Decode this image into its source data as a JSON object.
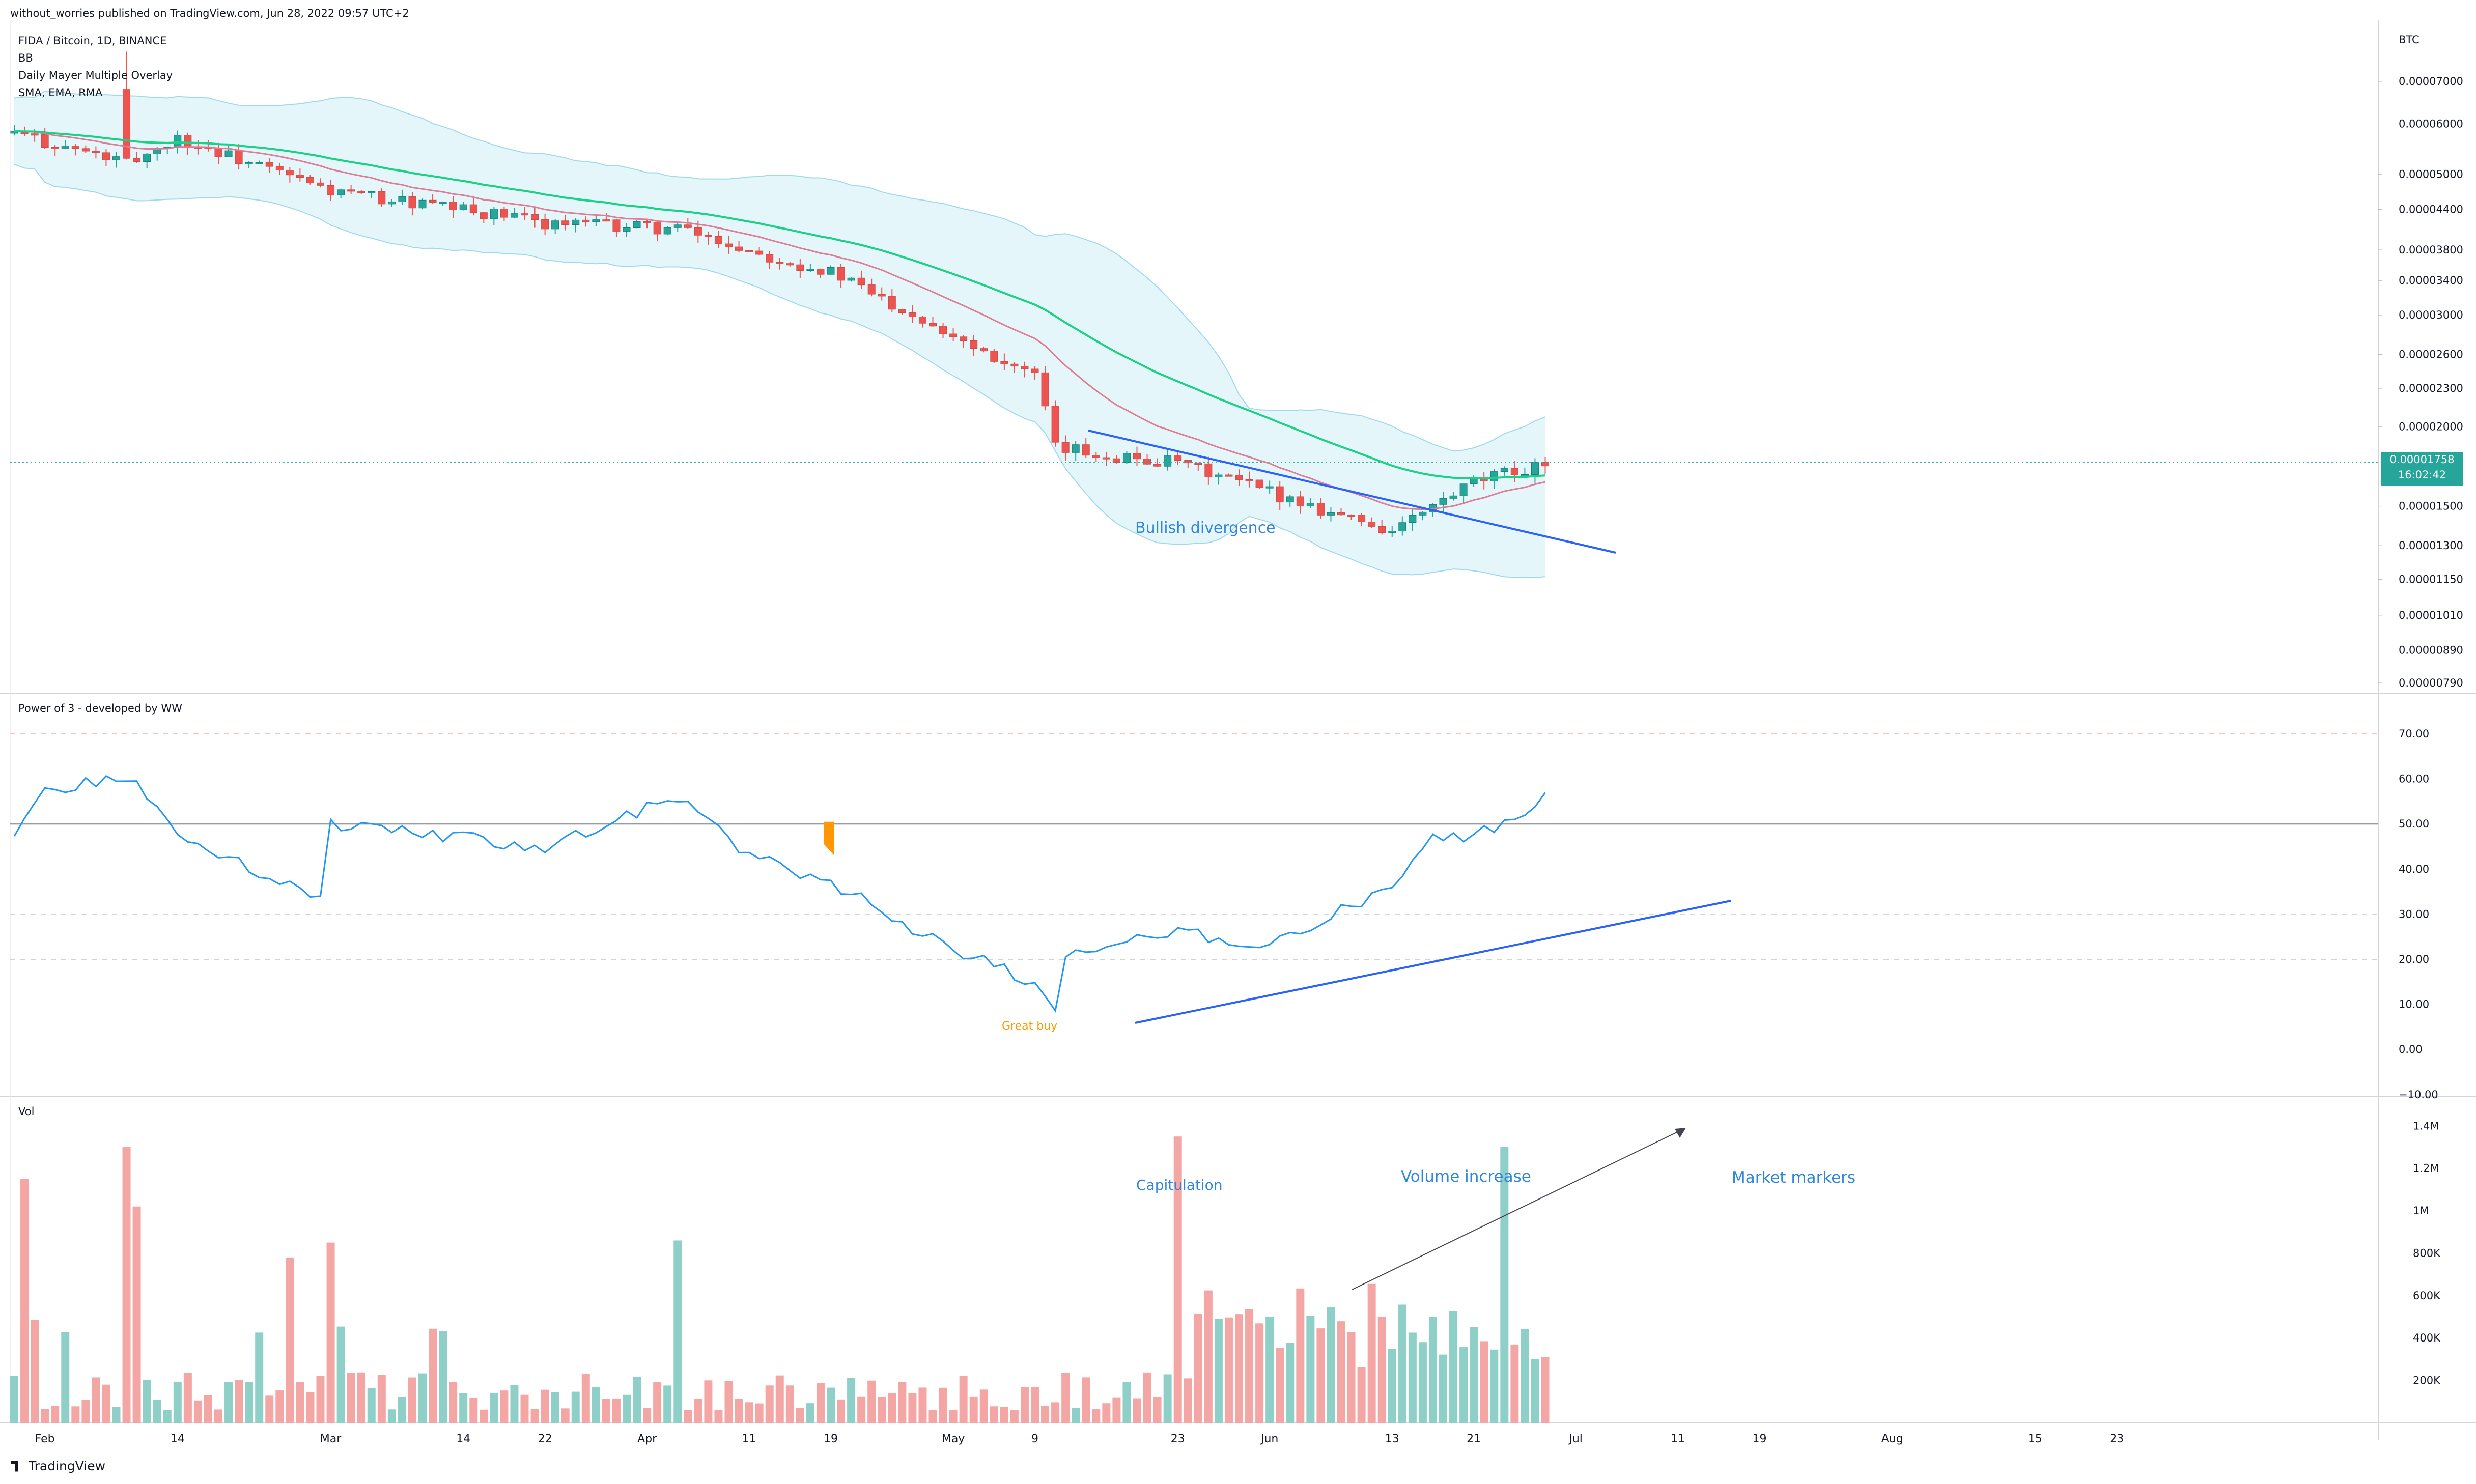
{
  "header": "without_worries published on TradingView.com, Jun 28, 2022 09:57 UTC+2",
  "footer": {
    "brand": "TradingView"
  },
  "indicators": {
    "symbol": "FIDA / Bitcoin, 1D, BINANCE",
    "bb": "BB",
    "mayer": "Daily Mayer Multiple Overlay",
    "ma": "SMA, EMA, RMA",
    "power": "Power of 3 - developed by WW",
    "vol": "Vol"
  },
  "price_axis": {
    "unit": "BTC",
    "ticks": [
      "0.00007000",
      "0.00006000",
      "0.00005000",
      "0.00004400",
      "0.00003800",
      "0.00003400",
      "0.00003000",
      "0.00002600",
      "0.00002300",
      "0.00002000",
      "0.00001500",
      "0.00001300",
      "0.00001150",
      "0.00001010",
      "0.00000890",
      "0.00000790"
    ],
    "last_price": "0.00001758",
    "countdown": "16:02:42"
  },
  "osc_axis": {
    "ticks": [
      "70.00",
      "60.00",
      "50.00",
      "40.00",
      "30.00",
      "20.00",
      "10.00",
      "0.00",
      "−10.00"
    ]
  },
  "vol_axis": {
    "ticks": [
      "1.4M",
      "1.2M",
      "1M",
      "800K",
      "600K",
      "400K",
      "200K"
    ]
  },
  "time_axis": {
    "ticks": [
      "Feb",
      "14",
      "Mar",
      "14",
      "22",
      "Apr",
      "11",
      "19",
      "May",
      "9",
      "23",
      "Jun",
      "13",
      "21",
      "Jul",
      "11",
      "19",
      "Aug",
      "15",
      "23"
    ]
  },
  "annotations": {
    "bullish": "Bullish divergence",
    "great_buy": "Great buy",
    "capitulation": "Capitulation",
    "volume_increase": "Volume increase",
    "market_markers": "Market markers"
  },
  "colors": {
    "bull": "#26a69a",
    "bear": "#ef5350",
    "bull_vol": "#8ecfc8",
    "bear_vol": "#f4a6a4",
    "bb_fill": "#e4f6fa",
    "bb_line": "#9fd9eb",
    "green_ma": "#1ad186",
    "pink_ma": "#e07b95",
    "trend": "#2962ff",
    "osc": "#2196f3",
    "osc_high": "#8e6ba8",
    "signal": "#ff9800",
    "annotation_text": "#2e86de"
  },
  "chart_data": [
    {
      "type": "candlestick",
      "title": "FIDA / Bitcoin, 1D, BINANCE",
      "ylabel": "BTC",
      "y_scale": "log",
      "ylim": [
        7.9e-06,
        7e-05
      ],
      "date_range": [
        "2022-01-29",
        "2022-06-28"
      ],
      "key_points": [
        {
          "date": "2022-01-29",
          "close": 5.8e-05
        },
        {
          "date": "2022-02-09",
          "high": 7.8e-05,
          "close": 5.2e-05
        },
        {
          "date": "2022-02-14",
          "close": 5.7e-05
        },
        {
          "date": "2022-03-01",
          "close": 4.7e-05
        },
        {
          "date": "2022-03-22",
          "close": 4.2e-05
        },
        {
          "date": "2022-04-04",
          "close": 4.1e-05
        },
        {
          "date": "2022-04-11",
          "close": 3.8e-05
        },
        {
          "date": "2022-04-19",
          "close": 3.5e-05
        },
        {
          "date": "2022-05-01",
          "close": 2.8e-05
        },
        {
          "date": "2022-05-09",
          "close": 2.4e-05
        },
        {
          "date": "2022-05-11",
          "close": 1.85e-05
        },
        {
          "date": "2022-05-23",
          "close": 1.75e-05
        },
        {
          "date": "2022-06-01",
          "close": 1.58e-05
        },
        {
          "date": "2022-06-13",
          "close": 1.37e-05
        },
        {
          "date": "2022-06-21",
          "close": 1.63e-05
        },
        {
          "date": "2022-06-28",
          "close": 1.758e-05
        }
      ],
      "last_price": 1.758e-05,
      "overlays": [
        "Bollinger Bands",
        "Mayer Multiple SMA (green)",
        "EMA (pink)"
      ]
    },
    {
      "type": "line",
      "title": "Power of 3 - developed by WW",
      "ylim": [
        -10,
        70
      ],
      "reference_lines": [
        50,
        30,
        20,
        70
      ],
      "key_points": [
        {
          "date": "2022-01-29",
          "value": 48
        },
        {
          "date": "2022-02-01",
          "value": 57
        },
        {
          "date": "2022-02-09",
          "value": 61
        },
        {
          "date": "2022-02-14",
          "value": 47
        },
        {
          "date": "2022-02-28",
          "value": 34
        },
        {
          "date": "2022-03-01",
          "value": 50
        },
        {
          "date": "2022-03-22",
          "value": 45
        },
        {
          "date": "2022-04-04",
          "value": 56
        },
        {
          "date": "2022-04-11",
          "value": 43
        },
        {
          "date": "2022-04-19",
          "value": 37
        },
        {
          "date": "2022-05-01",
          "value": 22
        },
        {
          "date": "2022-05-09",
          "value": 15
        },
        {
          "date": "2022-05-11",
          "value": 9
        },
        {
          "date": "2022-05-12",
          "value": 21
        },
        {
          "date": "2022-05-23",
          "value": 26
        },
        {
          "date": "2022-06-01",
          "value": 23
        },
        {
          "date": "2022-06-10",
          "value": 33
        },
        {
          "date": "2022-06-13",
          "value": 35
        },
        {
          "date": "2022-06-17",
          "value": 48
        },
        {
          "date": "2022-06-21",
          "value": 47
        },
        {
          "date": "2022-06-28",
          "value": 56
        }
      ]
    },
    {
      "type": "bar",
      "title": "Vol",
      "ylim": [
        0,
        1400000
      ],
      "key_points": [
        {
          "date": "2022-01-30",
          "value": 1150000
        },
        {
          "date": "2022-02-09",
          "value": 1300000
        },
        {
          "date": "2022-02-10",
          "value": 1020000
        },
        {
          "date": "2022-02-25",
          "value": 780000
        },
        {
          "date": "2022-03-01",
          "value": 850000
        },
        {
          "date": "2022-04-04",
          "value": 860000
        },
        {
          "date": "2022-05-23",
          "value": 1350000
        },
        {
          "date": "2022-06-24",
          "value": 1300000
        }
      ]
    }
  ]
}
